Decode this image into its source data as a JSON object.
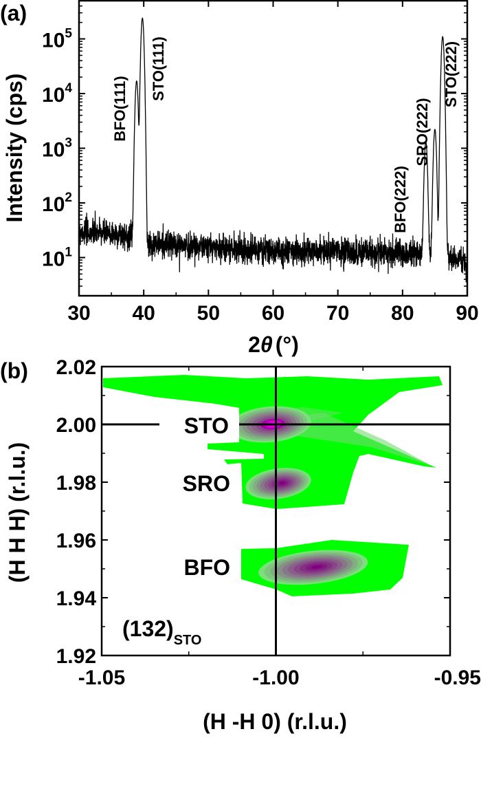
{
  "chart_data": [
    {
      "panel": "(a)",
      "type": "line",
      "xlabel_main": "2",
      "xlabel_symbol": "θ",
      "xlabel_unit": "(°)",
      "ylabel": "Intensity (cps)",
      "xlim": [
        30,
        90
      ],
      "ylim": [
        2,
        500000
      ],
      "yscale": "log",
      "xticks": [
        30,
        40,
        50,
        60,
        70,
        80,
        90
      ],
      "yticks_exponents": [
        1,
        2,
        3,
        4,
        5
      ],
      "ytick_base": "10",
      "grid": false,
      "line_color": "#000000",
      "background_level_approx": {
        "x": [
          30,
          38,
          41,
          60,
          83,
          88,
          90
        ],
        "y": [
          30,
          25,
          18,
          13,
          12,
          10,
          8
        ]
      },
      "peaks": [
        {
          "label": "BFO(111)",
          "x": 38.9,
          "y": 17000
        },
        {
          "label": "STO(111)",
          "x": 39.8,
          "y": 240000
        },
        {
          "label": "BFO(222)",
          "x": 83.6,
          "y": 1300
        },
        {
          "label": "SRO(222)",
          "x": 85.0,
          "y": 2200
        },
        {
          "label": "STO(222)",
          "x": 86.2,
          "y": 110000
        }
      ]
    },
    {
      "panel": "(b)",
      "type": "heatmap",
      "xlabel": "(H -H 0) (r.l.u.)",
      "ylabel": "(H H H) (r.l.u.)",
      "xlim": [
        -1.05,
        -0.95
      ],
      "ylim": [
        1.92,
        2.02
      ],
      "xticks": [
        "-1.05",
        "-1.00",
        "-0.95"
      ],
      "yticks": [
        "1.92",
        "1.94",
        "1.96",
        "1.98",
        "2.00",
        "2.02"
      ],
      "reference_lines": {
        "x": -1.0,
        "y": 2.0
      },
      "annotation_main": "(132)",
      "annotation_sub": "STO",
      "colormap": {
        "low": "#00ff00",
        "mid": "#800080",
        "high": "#ff00ff"
      },
      "peaks": [
        {
          "label": "STO",
          "x": -1.0017,
          "y": 2.0,
          "relative_intensity": 1.0
        },
        {
          "label": "SRO",
          "x": -0.9993,
          "y": 1.9795,
          "relative_intensity": 0.7
        },
        {
          "label": "BFO",
          "x": -0.9893,
          "y": 1.9505,
          "relative_intensity": 0.75
        }
      ]
    }
  ]
}
